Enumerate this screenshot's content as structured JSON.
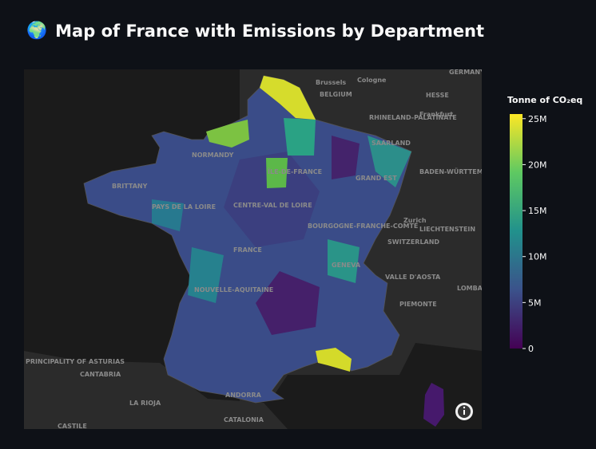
{
  "header": {
    "icon": "🌍",
    "title": "Map of France with Emissions by Department"
  },
  "colorbar": {
    "title": "Tonne of CO₂eq",
    "colorscale": "viridis",
    "range": [
      0,
      25500000
    ],
    "ticks": [
      0,
      {
        "value": 5000000,
        "label": "5M"
      },
      {
        "value": 10000000,
        "label": "10M"
      },
      {
        "value": 15000000,
        "label": "15M"
      },
      {
        "value": 20000000,
        "label": "20M"
      },
      {
        "value": 25000000,
        "label": "25M"
      }
    ]
  },
  "map_labels": [
    "GERMANY",
    "BELGIUM",
    "Brussels",
    "Cologne",
    "HESSE",
    "RHINELAND-PALATINATE",
    "Frankfurt",
    "SAARLAND",
    "BADEN-WÜRTTEMBERG",
    "Zurich",
    "LIECHTENSTEIN",
    "SWITZERLAND",
    "LOMBARDY",
    "PIEMONTE",
    "VALLE D'AOSTA",
    "PRINCIPALITY OF ASTURIAS",
    "CANTABRIA",
    "LA RIOJA",
    "CATALONIA",
    "ANDORRA",
    "CASTILE",
    "FRANCE",
    "NORMANDY",
    "BRITTANY",
    "PAYS DE LA LOIRE",
    "CENTRE-VAL DE LOIRE",
    "NOUVELLE-AQUITAINE",
    "BOURGOGNE-FRANCHE-COMTÉ",
    "GRAND EST",
    "ÎLE-DE-FRANCE",
    "GENEVA"
  ]
}
